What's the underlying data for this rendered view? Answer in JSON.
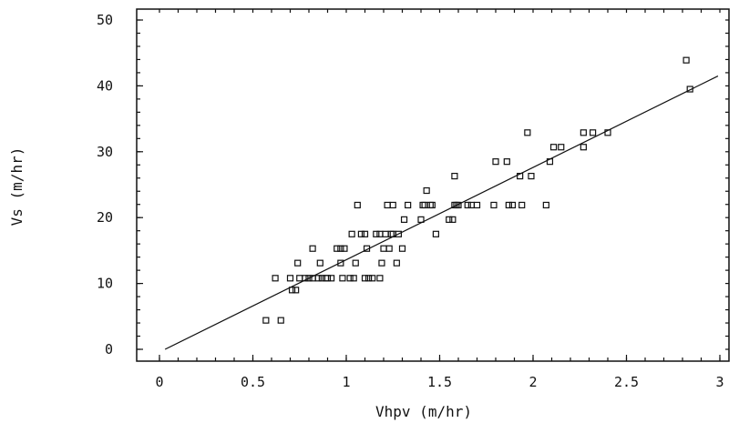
{
  "chart_data": {
    "type": "scatter",
    "title": "",
    "xlabel": "Vhpv (m/hr)",
    "ylabel": "Vs (m/hr)",
    "xlim": [
      0,
      3
    ],
    "ylim": [
      0,
      50
    ],
    "xticks": [
      "0",
      "0.5",
      "1",
      "1.5",
      "2",
      "2.5",
      "3"
    ],
    "yticks": [
      "0",
      "10",
      "20",
      "30",
      "40",
      "50"
    ],
    "xtick_values": [
      0,
      0.5,
      1,
      1.5,
      2,
      2.5,
      3
    ],
    "ytick_values": [
      0,
      10,
      20,
      30,
      40,
      50
    ],
    "grid": false,
    "marker": "open-square",
    "series": [
      {
        "points": [
          [
            0.57,
            4.4
          ],
          [
            0.65,
            4.4
          ],
          [
            0.62,
            10.8
          ],
          [
            0.7,
            10.8
          ],
          [
            0.71,
            9.0
          ],
          [
            0.73,
            9.0
          ],
          [
            0.74,
            13.1
          ],
          [
            0.75,
            10.8
          ],
          [
            0.78,
            10.8
          ],
          [
            0.8,
            10.8
          ],
          [
            0.82,
            15.3
          ],
          [
            0.82,
            10.8
          ],
          [
            0.85,
            10.8
          ],
          [
            0.86,
            13.1
          ],
          [
            0.87,
            10.8
          ],
          [
            0.89,
            10.8
          ],
          [
            0.9,
            10.8
          ],
          [
            0.92,
            10.8
          ],
          [
            0.95,
            15.3
          ],
          [
            0.97,
            13.1
          ],
          [
            0.97,
            15.3
          ],
          [
            0.98,
            10.8
          ],
          [
            0.99,
            15.3
          ],
          [
            1.02,
            10.8
          ],
          [
            1.03,
            17.5
          ],
          [
            1.04,
            10.8
          ],
          [
            1.05,
            13.1
          ],
          [
            1.06,
            21.9
          ],
          [
            1.08,
            17.5
          ],
          [
            1.1,
            17.5
          ],
          [
            1.1,
            10.8
          ],
          [
            1.11,
            15.3
          ],
          [
            1.12,
            10.8
          ],
          [
            1.14,
            10.8
          ],
          [
            1.16,
            17.5
          ],
          [
            1.18,
            17.5
          ],
          [
            1.18,
            10.8
          ],
          [
            1.19,
            13.1
          ],
          [
            1.2,
            15.3
          ],
          [
            1.21,
            17.5
          ],
          [
            1.22,
            21.9
          ],
          [
            1.23,
            15.3
          ],
          [
            1.24,
            17.5
          ],
          [
            1.25,
            21.9
          ],
          [
            1.25,
            17.5
          ],
          [
            1.27,
            13.1
          ],
          [
            1.28,
            17.5
          ],
          [
            1.3,
            15.3
          ],
          [
            1.31,
            19.7
          ],
          [
            1.33,
            21.9
          ],
          [
            1.4,
            19.7
          ],
          [
            1.41,
            21.9
          ],
          [
            1.42,
            21.9
          ],
          [
            1.43,
            24.1
          ],
          [
            1.45,
            21.9
          ],
          [
            1.46,
            21.9
          ],
          [
            1.48,
            17.5
          ],
          [
            1.55,
            19.7
          ],
          [
            1.57,
            19.7
          ],
          [
            1.58,
            21.9
          ],
          [
            1.58,
            26.3
          ],
          [
            1.59,
            21.9
          ],
          [
            1.6,
            21.9
          ],
          [
            1.65,
            21.9
          ],
          [
            1.67,
            21.9
          ],
          [
            1.7,
            21.9
          ],
          [
            1.79,
            21.9
          ],
          [
            1.8,
            28.5
          ],
          [
            1.86,
            28.5
          ],
          [
            1.87,
            21.9
          ],
          [
            1.89,
            21.9
          ],
          [
            1.93,
            26.3
          ],
          [
            1.94,
            21.9
          ],
          [
            1.97,
            32.9
          ],
          [
            1.99,
            26.3
          ],
          [
            2.07,
            21.9
          ],
          [
            2.09,
            28.5
          ],
          [
            2.11,
            30.7
          ],
          [
            2.15,
            30.7
          ],
          [
            2.27,
            32.9
          ],
          [
            2.27,
            30.7
          ],
          [
            2.32,
            32.9
          ],
          [
            2.4,
            32.9
          ],
          [
            2.82,
            43.9
          ],
          [
            2.84,
            39.5
          ]
        ]
      }
    ],
    "fit_line": [
      [
        0.03,
        0.0
      ],
      [
        2.99,
        41.5
      ]
    ]
  }
}
